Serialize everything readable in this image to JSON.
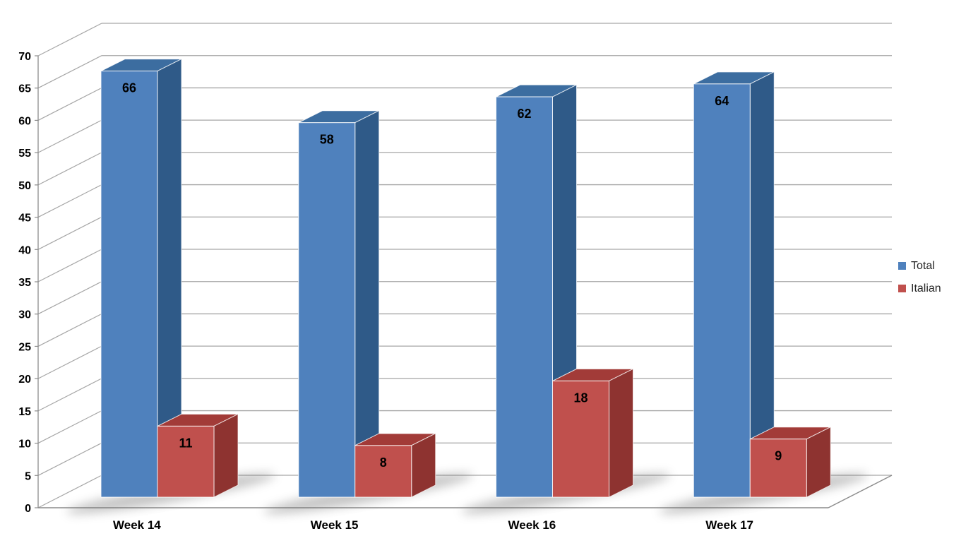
{
  "chart_data": {
    "type": "bar",
    "variant": "3d-clustered-column",
    "title": "",
    "categories": [
      "Week 14",
      "Week 15",
      "Week 16",
      "Week 17"
    ],
    "series": [
      {
        "name": "Total",
        "values": [
          66,
          58,
          62,
          64
        ],
        "color": "#4F81BD",
        "color_top": "#3C6DA0",
        "color_side": "#2F5A88"
      },
      {
        "name": "Italian",
        "values": [
          11,
          8,
          18,
          9
        ],
        "color": "#C0504D",
        "color_top": "#A23B38",
        "color_side": "#8E3330"
      }
    ],
    "ylim": [
      0,
      70
    ],
    "ytick_step": 5,
    "yticks": [
      0,
      5,
      10,
      15,
      20,
      25,
      30,
      35,
      40,
      45,
      50,
      55,
      60,
      65,
      70
    ],
    "data_labels": true,
    "grid": true,
    "legend_position": "right",
    "gridline_color": "#A6A6A6",
    "axis_line_color": "#8C8C8C",
    "tick_label_color": "#000000",
    "data_label_color": "#000000",
    "background": "#FFFFFF"
  }
}
